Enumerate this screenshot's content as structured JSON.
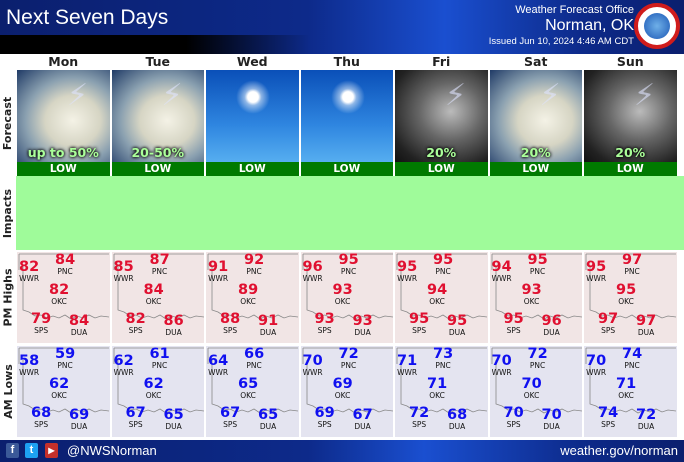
{
  "header": {
    "title": "Next Seven Days",
    "office_label": "Weather Forecast Office",
    "office_name": "Norman, OK",
    "issued": "Issued Jun 10, 2024 4:46 AM CDT",
    "logo_text": "NATIONAL WEATHER SERVICE"
  },
  "row_labels": {
    "forecast": "Forecast",
    "impacts": "Impacts",
    "highs": "PM Highs",
    "lows": "AM Lows"
  },
  "colors": {
    "high": "#e01030",
    "low": "#1010f0",
    "impact_low": "#007a00",
    "impacts_bg": "#9ffb9a"
  },
  "days": [
    {
      "name": "Mon",
      "icon": "thunderstorm-cumulus",
      "pop": "up to 50%",
      "impact": "LOW",
      "highs": {
        "WWR": 82,
        "PNC": 84,
        "OKC": 82,
        "SPS": 79,
        "DUA": 84
      },
      "lows": {
        "WWR": 58,
        "PNC": 59,
        "OKC": 62,
        "SPS": 68,
        "DUA": 69
      }
    },
    {
      "name": "Tue",
      "icon": "thunderstorm-cumulus",
      "pop": "20-50%",
      "impact": "LOW",
      "highs": {
        "WWR": 85,
        "PNC": 87,
        "OKC": 84,
        "SPS": 82,
        "DUA": 86
      },
      "lows": {
        "WWR": 62,
        "PNC": 61,
        "OKC": 62,
        "SPS": 67,
        "DUA": 65
      }
    },
    {
      "name": "Wed",
      "icon": "sunny",
      "pop": "",
      "impact": "LOW",
      "highs": {
        "WWR": 91,
        "PNC": 92,
        "OKC": 89,
        "SPS": 88,
        "DUA": 91
      },
      "lows": {
        "WWR": 64,
        "PNC": 66,
        "OKC": 65,
        "SPS": 67,
        "DUA": 65
      }
    },
    {
      "name": "Thu",
      "icon": "sunny",
      "pop": "",
      "impact": "LOW",
      "highs": {
        "WWR": 96,
        "PNC": 95,
        "OKC": 93,
        "SPS": 93,
        "DUA": 93
      },
      "lows": {
        "WWR": 70,
        "PNC": 72,
        "OKC": 69,
        "SPS": 69,
        "DUA": 67
      }
    },
    {
      "name": "Fri",
      "icon": "night-thunderstorm",
      "pop": "20%",
      "impact": "LOW",
      "highs": {
        "WWR": 95,
        "PNC": 95,
        "OKC": 94,
        "SPS": 95,
        "DUA": 95
      },
      "lows": {
        "WWR": 71,
        "PNC": 73,
        "OKC": 71,
        "SPS": 72,
        "DUA": 68
      }
    },
    {
      "name": "Sat",
      "icon": "thunderstorm-cumulus",
      "pop": "20%",
      "impact": "LOW",
      "highs": {
        "WWR": 94,
        "PNC": 95,
        "OKC": 93,
        "SPS": 95,
        "DUA": 96
      },
      "lows": {
        "WWR": 70,
        "PNC": 72,
        "OKC": 70,
        "SPS": 70,
        "DUA": 70
      }
    },
    {
      "name": "Sun",
      "icon": "night-thunderstorm",
      "pop": "20%",
      "impact": "LOW",
      "highs": {
        "WWR": 95,
        "PNC": 97,
        "OKC": 95,
        "SPS": 97,
        "DUA": 97
      },
      "lows": {
        "WWR": 70,
        "PNC": 74,
        "OKC": 71,
        "SPS": 74,
        "DUA": 72
      }
    }
  ],
  "footer": {
    "social_icons": [
      "facebook-icon",
      "twitter-icon",
      "youtube-icon"
    ],
    "handle": "@NWSNorman",
    "url": "weather.gov/norman"
  }
}
